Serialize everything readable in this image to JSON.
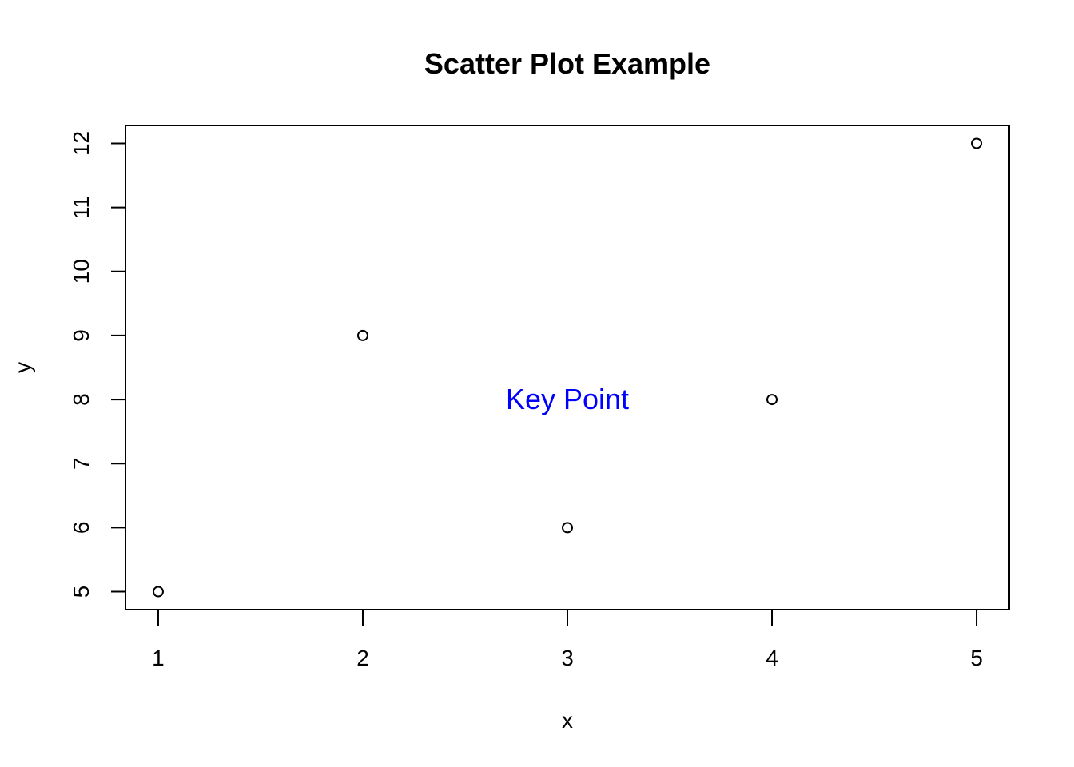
{
  "chart_data": {
    "type": "scatter",
    "title": "Scatter Plot Example",
    "xlabel": "x",
    "ylabel": "y",
    "xlim": [
      0.84,
      5.16
    ],
    "ylim": [
      4.72,
      12.28
    ],
    "x_ticks": [
      "1",
      "2",
      "3",
      "4",
      "5"
    ],
    "y_ticks": [
      "5",
      "6",
      "7",
      "8",
      "9",
      "10",
      "11",
      "12"
    ],
    "x": [
      1,
      2,
      3,
      4,
      5
    ],
    "y": [
      5,
      9,
      6,
      8,
      12
    ],
    "grid": false,
    "point_marker": "open-circle",
    "annotations": [
      {
        "text": "Key Point",
        "x": 3,
        "y": 8,
        "color": "#0000ff"
      }
    ]
  }
}
